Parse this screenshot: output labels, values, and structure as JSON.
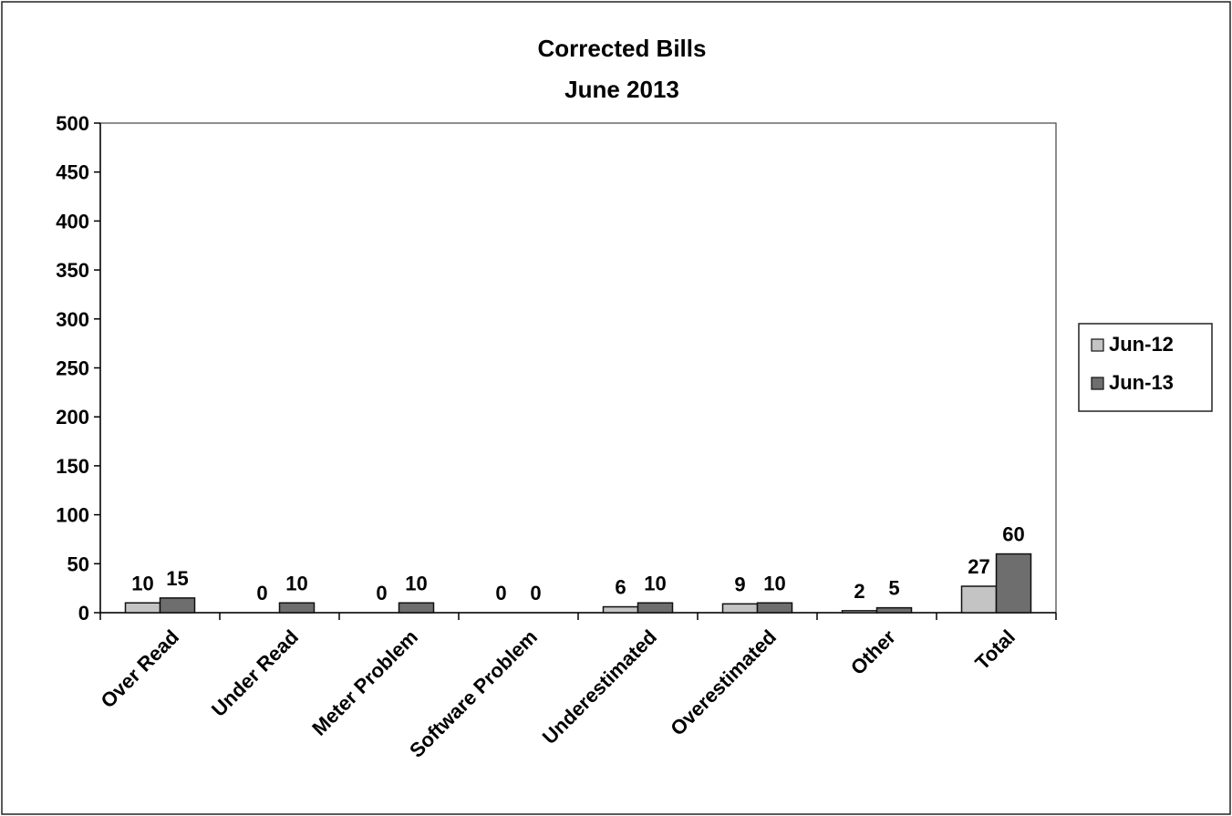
{
  "chart_data": {
    "type": "bar",
    "title": [
      "Corrected Bills",
      "June 2013"
    ],
    "categories": [
      "Over Read",
      "Under Read",
      "Meter Problem",
      "Software Problem",
      "Underestimated",
      "Overestimated",
      "Other",
      "Total"
    ],
    "series": [
      {
        "name": "Jun-12",
        "values": [
          10,
          0,
          0,
          0,
          6,
          9,
          2,
          27
        ],
        "color": "#c4c4c4"
      },
      {
        "name": "Jun-13",
        "values": [
          15,
          10,
          10,
          0,
          10,
          10,
          5,
          60
        ],
        "color": "#6e6e6e"
      }
    ],
    "ylim": [
      0,
      500
    ],
    "yticks": [
      0,
      50,
      100,
      150,
      200,
      250,
      300,
      350,
      400,
      450,
      500
    ],
    "grid": false,
    "legend": "right",
    "data_labels": true
  }
}
